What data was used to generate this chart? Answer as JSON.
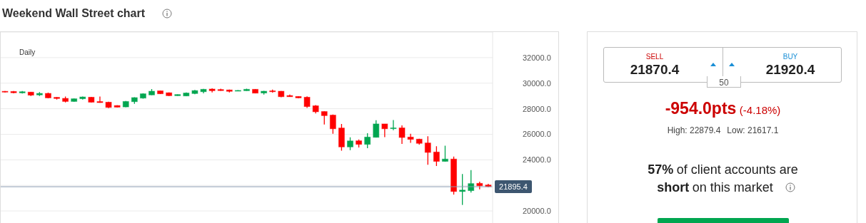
{
  "chart_data": [
    {
      "type": "candlestick",
      "title": "Weekend Wall Street chart",
      "annotations": [
        "Daily"
      ],
      "categories": [
        null,
        null,
        null,
        null,
        null,
        null,
        null,
        null,
        null,
        null,
        null,
        null,
        null,
        null,
        null,
        null,
        null,
        null,
        null,
        null,
        null,
        null,
        null,
        null,
        null,
        null,
        null,
        null,
        null,
        null,
        null,
        null,
        null,
        null,
        null,
        null,
        null,
        null,
        null,
        null,
        null,
        null,
        null,
        null,
        null,
        null,
        null,
        null,
        null,
        null,
        null,
        null,
        null,
        null,
        null,
        null,
        null
      ],
      "ohlc": [
        [
          29360,
          29380,
          29280,
          29300
        ],
        [
          29350,
          29390,
          29210,
          29250
        ],
        [
          29240,
          29380,
          29190,
          29330
        ],
        [
          29300,
          29320,
          28990,
          29060
        ],
        [
          29080,
          29300,
          29000,
          29200
        ],
        [
          29200,
          29260,
          28810,
          28850
        ],
        [
          28890,
          28910,
          28720,
          28800
        ],
        [
          28810,
          28960,
          28490,
          28570
        ],
        [
          28570,
          28800,
          28550,
          28780
        ],
        [
          28780,
          28960,
          28720,
          28920
        ],
        [
          28900,
          28930,
          28480,
          28510
        ],
        [
          28560,
          28960,
          28460,
          28480
        ],
        [
          28510,
          28550,
          28050,
          28100
        ],
        [
          28250,
          28270,
          28100,
          28120
        ],
        [
          28140,
          28600,
          28120,
          28570
        ],
        [
          28550,
          28900,
          28380,
          28870
        ],
        [
          28830,
          29200,
          28780,
          29170
        ],
        [
          29080,
          29540,
          29060,
          29370
        ],
        [
          29400,
          29420,
          29150,
          29170
        ],
        [
          29250,
          29270,
          29000,
          29020
        ],
        [
          29020,
          29120,
          29010,
          29110
        ],
        [
          29000,
          29270,
          28980,
          29230
        ],
        [
          29190,
          29470,
          29130,
          29420
        ],
        [
          29330,
          29550,
          29200,
          29520
        ],
        [
          29540,
          29600,
          29280,
          29410
        ],
        [
          29500,
          29560,
          29400,
          29420
        ],
        [
          29470,
          29500,
          29280,
          29360
        ],
        [
          29380,
          29450,
          29370,
          29430
        ],
        [
          29410,
          29560,
          29400,
          29520
        ],
        [
          29520,
          29540,
          29200,
          29220
        ],
        [
          29230,
          29400,
          29110,
          29370
        ],
        [
          29400,
          29500,
          29260,
          29330
        ],
        [
          29370,
          29380,
          28900,
          28940
        ],
        [
          29030,
          29100,
          28920,
          28940
        ],
        [
          28960,
          28980,
          28820,
          28850
        ],
        [
          28900,
          28970,
          28060,
          28170
        ],
        [
          28230,
          28290,
          27630,
          27760
        ],
        [
          27780,
          27800,
          26770,
          27460
        ],
        [
          27500,
          27550,
          26040,
          26430
        ],
        [
          26490,
          26800,
          24720,
          25010
        ],
        [
          25010,
          25760,
          24760,
          25480
        ],
        [
          25490,
          25590,
          24970,
          25210
        ],
        [
          25210,
          26080,
          24910,
          25780
        ],
        [
          25760,
          27100,
          25750,
          26810
        ],
        [
          26810,
          26810,
          25780,
          26430
        ],
        [
          26440,
          27120,
          26320,
          26500
        ],
        [
          26500,
          26690,
          25250,
          25750
        ],
        [
          25780,
          26040,
          25330,
          25600
        ],
        [
          25620,
          25650,
          25190,
          25290
        ],
        [
          25320,
          25850,
          23620,
          24580
        ],
        [
          24610,
          25060,
          23510,
          23880
        ],
        [
          23880,
          25100,
          23870,
          24060
        ],
        [
          24060,
          24250,
          21280,
          21520
        ],
        [
          21520,
          22890,
          20470,
          21630
        ],
        [
          21590,
          23190,
          21440,
          22140
        ],
        [
          22160,
          22290,
          21690,
          21970
        ],
        [
          22030,
          22120,
          21860,
          21910
        ]
      ],
      "colors": [
        "#ff0000",
        "#ff0000",
        "#00a650",
        "#ff0000",
        "#00a650",
        "#ff0000",
        "#ff0000",
        "#ff0000",
        "#00a650",
        "#00a650",
        "#ff0000",
        "#ff0000",
        "#ff0000",
        "#ff0000",
        "#00a650",
        "#00a650",
        "#00a650",
        "#00a650",
        "#ff0000",
        "#ff0000",
        "#00a650",
        "#00a650",
        "#00a650",
        "#00a650",
        "#ff0000",
        "#ff0000",
        "#ff0000",
        "#00a650",
        "#00a650",
        "#ff0000",
        "#00a650",
        "#ff0000",
        "#ff0000",
        "#ff0000",
        "#ff0000",
        "#ff0000",
        "#ff0000",
        "#ff0000",
        "#ff0000",
        "#ff0000",
        "#00a650",
        "#ff0000",
        "#00a650",
        "#00a650",
        "#ff0000",
        "#00a650",
        "#ff0000",
        "#ff0000",
        "#ff0000",
        "#ff0000",
        "#ff0000",
        "#00a650",
        "#ff0000",
        "#00a650",
        "#00a650",
        "#ff0000",
        "#ff0000"
      ],
      "ylim": [
        19000,
        34000
      ],
      "yticks": [
        {
          "value": 20000,
          "label": "20000.0"
        },
        {
          "value": 22000,
          "label": null
        },
        {
          "value": 24000,
          "label": "24000.0"
        },
        {
          "value": 26000,
          "label": "26000.0"
        },
        {
          "value": 28000,
          "label": "28000.0"
        },
        {
          "value": 30000,
          "label": "30000.0"
        },
        {
          "value": 32000,
          "label": "32000.0"
        }
      ],
      "ref_lines": [
        {
          "axis": "y",
          "value": 21895.4,
          "label": "21895.4",
          "color": "#8a9bb0"
        }
      ],
      "grid": "y",
      "tick_labels": "y"
    },
    {
      "type": "other",
      "annotations": [
        "SELL",
        "21870.4",
        "BUY",
        "21920.4",
        "50",
        "-954.0pts",
        "(-4.18%)",
        "High: 22879.4",
        "Low: 21617.1",
        "57%",
        "of client accounts are",
        "short",
        "on this market"
      ]
    }
  ]
}
